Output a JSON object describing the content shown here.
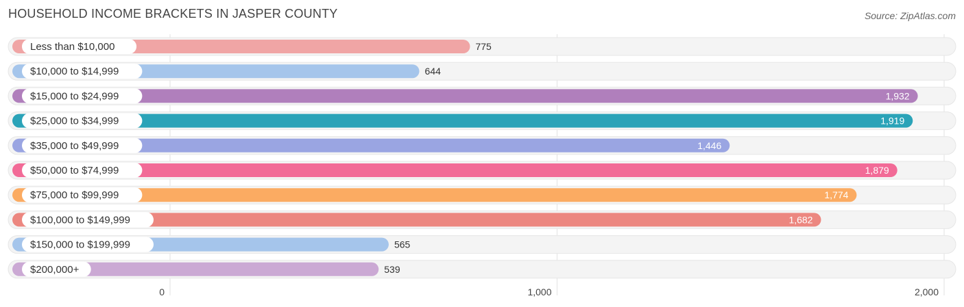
{
  "chart_data": {
    "type": "bar",
    "orientation": "horizontal",
    "title": "HOUSEHOLD INCOME BRACKETS IN JASPER COUNTY",
    "source": "Source: ZipAtlas.com",
    "categories": [
      "Less than $10,000",
      "$10,000 to $14,999",
      "$15,000 to $24,999",
      "$25,000 to $34,999",
      "$35,000 to $49,999",
      "$50,000 to $74,999",
      "$75,000 to $99,999",
      "$100,000 to $149,999",
      "$150,000 to $199,999",
      "$200,000+"
    ],
    "values": [
      775,
      644,
      1932,
      1919,
      1446,
      1879,
      1774,
      1682,
      565,
      539
    ],
    "value_labels": [
      "775",
      "644",
      "1,932",
      "1,919",
      "1,446",
      "1,879",
      "1,774",
      "1,682",
      "565",
      "539"
    ],
    "colors": [
      "#f0a5a5",
      "#a5c5eb",
      "#b07fbc",
      "#2ba3b8",
      "#9aa5e2",
      "#f26b97",
      "#fbab62",
      "#ec8780",
      "#a5c5eb",
      "#cba9d4"
    ],
    "xlim": [
      0,
      2000
    ],
    "xticks": [
      0,
      1000,
      2000
    ],
    "xtick_labels": [
      "0",
      "1,000",
      "2,000"
    ],
    "grid": true
  }
}
